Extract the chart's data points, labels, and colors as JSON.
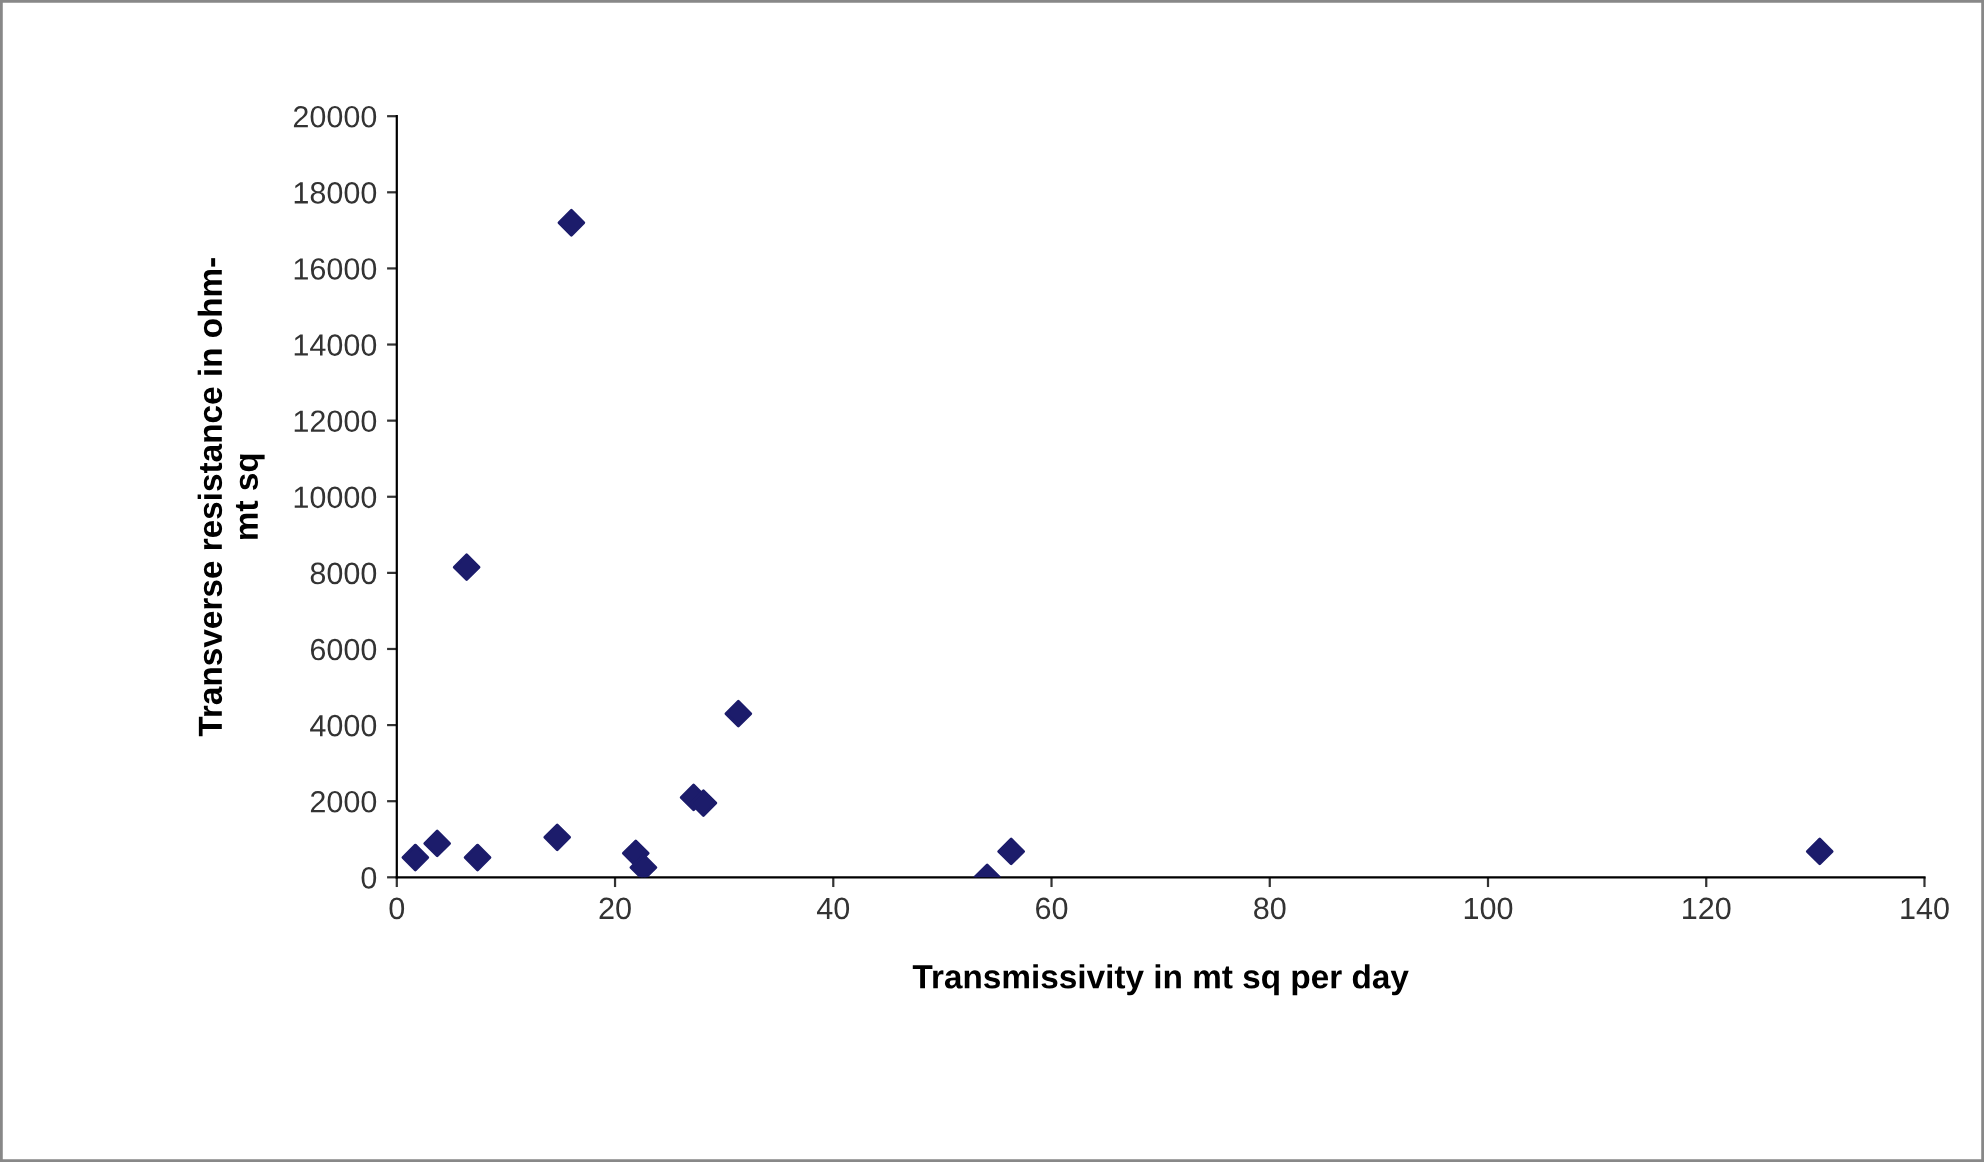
{
  "chart_data": {
    "type": "scatter",
    "xlabel": "Transmissivity in mt sq per day",
    "ylabel": "Transverse resistance in ohm-\nmt sq",
    "series": [
      {
        "color": "#1c1c6b",
        "x": [
          1.7,
          3.7,
          7.4,
          6.4,
          14.7,
          16.0,
          21.9,
          22.6,
          27.2,
          28.1,
          31.3,
          54.1,
          56.3,
          130.4
        ],
        "values": [
          520,
          890,
          520,
          8150,
          1050,
          17200,
          630,
          260,
          2100,
          1950,
          4300,
          0,
          680,
          680
        ]
      }
    ],
    "marker": "diamond",
    "grid": false,
    "legend": false,
    "xlim": [
      0,
      140
    ],
    "xticks": [
      0,
      20,
      40,
      60,
      80,
      100,
      120,
      140
    ],
    "ylim": [
      0,
      20000
    ],
    "yticks": [
      0,
      2000,
      4000,
      6000,
      8000,
      10000,
      12000,
      14000,
      16000,
      18000,
      20000
    ]
  }
}
